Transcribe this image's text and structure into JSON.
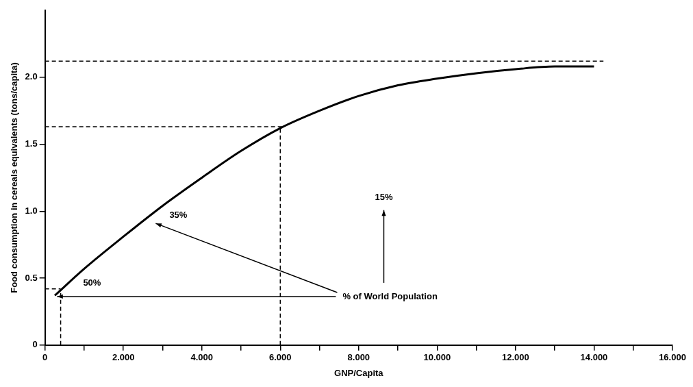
{
  "chart_data": {
    "type": "line",
    "xlabel": "GNP/Capita",
    "ylabel": "Food consumption in cereals equivalents (tons/capita)",
    "x": [
      0.25,
      1,
      2,
      3,
      4,
      5,
      6,
      7,
      8,
      9,
      10,
      11,
      12,
      13,
      14
    ],
    "series": [
      {
        "color": "#000000",
        "values": [
          0.37,
          0.57,
          0.81,
          1.04,
          1.25,
          1.45,
          1.62,
          1.75,
          1.86,
          1.94,
          1.99,
          2.03,
          2.06,
          2.08,
          2.08
        ]
      },
      {
        "type": "line",
        "x": [
          0,
          0.4
        ],
        "color": "#000000",
        "line_style": "dashed",
        "values": [
          0.42,
          0.42
        ]
      }
    ],
    "xlim": [
      0,
      16
    ],
    "xticks": [
      0,
      {
        "value": 1,
        "label": null
      },
      {
        "value": 2,
        "label": "2.000"
      },
      {
        "value": 3,
        "label": null
      },
      {
        "value": 4,
        "label": "4.000"
      },
      {
        "value": 5,
        "label": null
      },
      {
        "value": 6,
        "label": "6.000"
      },
      {
        "value": 7,
        "label": null
      },
      {
        "value": 8,
        "label": "8.000"
      },
      {
        "value": 9,
        "label": null
      },
      {
        "value": 10,
        "label": "10.000"
      },
      {
        "value": 11,
        "label": null
      },
      {
        "value": 12,
        "label": "12.000"
      },
      {
        "value": 13,
        "label": null
      },
      {
        "value": 14,
        "label": "14.000"
      },
      {
        "value": 15,
        "label": null
      },
      {
        "value": 16,
        "label": "16.000"
      }
    ],
    "ylim": [
      0,
      2.5
    ],
    "yticks": [
      0,
      0.5,
      {
        "value": 1,
        "label": "1.0"
      },
      1.5,
      {
        "value": 2,
        "label": "2.0"
      }
    ],
    "grid": false,
    "legend": false,
    "marker": "none",
    "line_style": "solid",
    "ref_lines": [
      {
        "axis": "y",
        "value": 2.12,
        "color": "#000000",
        "line_style": "dashed"
      },
      {
        "axis": "y",
        "value": 1.63,
        "color": "#000000",
        "line_style": "dashed"
      },
      {
        "axis": "x",
        "value": 6,
        "color": "#000000",
        "line_style": "dashed"
      },
      {
        "axis": "x",
        "value": 0.4,
        "color": "#000000",
        "line_style": "dashed"
      }
    ],
    "annotations": [
      "50%",
      "35%",
      "15%",
      "% of World Population"
    ]
  }
}
